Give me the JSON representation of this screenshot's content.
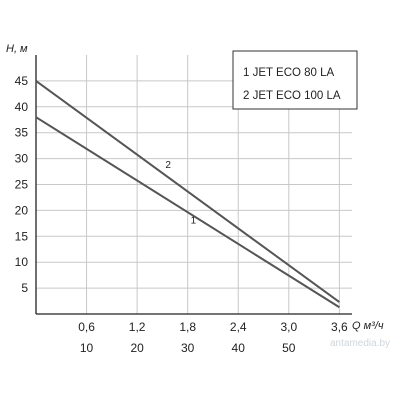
{
  "chart_data": {
    "type": "line",
    "y_label": "H, м",
    "x_label": "Q м³/ч",
    "y_ticks": [
      "5",
      "10",
      "15",
      "20",
      "25",
      "30",
      "35",
      "40",
      "45"
    ],
    "y_range": [
      0,
      50
    ],
    "x_range": [
      0,
      3.75
    ],
    "x_ticks_primary": [
      "0,6",
      "1,2",
      "1,8",
      "2,4",
      "3,0",
      "3,6"
    ],
    "x_ticks_secondary": [
      "10",
      "20",
      "30",
      "40",
      "50",
      ""
    ],
    "x_tick_values": [
      0.6,
      1.2,
      1.8,
      2.4,
      3.0,
      3.6
    ],
    "grid": true,
    "legend": {
      "placement": "top-right",
      "items": [
        {
          "label": "1 JET ECO 80 LA"
        },
        {
          "label": "2 JET ECO 100 LA"
        }
      ]
    },
    "series": [
      {
        "name": "1",
        "x": [
          0,
          3.6
        ],
        "y": [
          38,
          1.3
        ],
        "color": "#555555",
        "label_at": {
          "x": 1.8,
          "y": 16.9
        }
      },
      {
        "name": "2",
        "x": [
          0,
          3.6
        ],
        "y": [
          45,
          2.3
        ],
        "color": "#555555",
        "label_at": {
          "x": 1.5,
          "y": 27.6
        }
      }
    ]
  },
  "watermark": "antamedia.by"
}
